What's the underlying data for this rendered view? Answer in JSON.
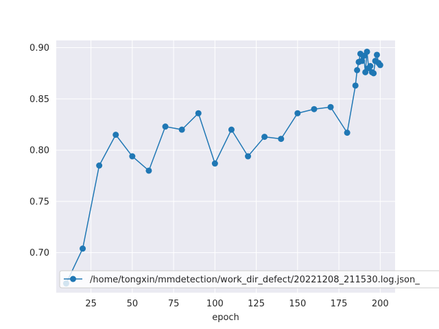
{
  "chart_data": {
    "type": "line",
    "title": "",
    "xlabel": "epoch",
    "ylabel": "",
    "xlim": [
      4,
      209
    ],
    "ylim": [
      0.661,
      0.907
    ],
    "xticks": [
      25,
      50,
      75,
      100,
      125,
      150,
      175,
      200
    ],
    "yticks": [
      0.7,
      0.75,
      0.8,
      0.85,
      0.9
    ],
    "xtick_labels": [
      "25",
      "50",
      "75",
      "100",
      "125",
      "150",
      "175",
      "200"
    ],
    "ytick_labels": [
      "0.70",
      "0.75",
      "0.80",
      "0.85",
      "0.90"
    ],
    "grid": true,
    "legend_position": "lower-right",
    "colors": {
      "line": "#1f77b4",
      "plot_bg": "#eaeaf2",
      "grid": "#ffffff",
      "legend_edge": "#cccccc"
    },
    "series": [
      {
        "name": "/home/tongxin/mmdetection/work_dir_defect/20221208_211530.log.json_",
        "x": [
          10,
          20,
          30,
          40,
          50,
          60,
          70,
          80,
          90,
          100,
          110,
          120,
          130,
          140,
          150,
          160,
          170,
          180,
          185,
          186,
          187,
          188,
          189,
          190,
          191,
          192,
          193,
          194,
          195,
          196,
          197,
          198,
          199,
          200
        ],
        "y": [
          0.67,
          0.704,
          0.785,
          0.815,
          0.794,
          0.78,
          0.823,
          0.82,
          0.836,
          0.787,
          0.82,
          0.794,
          0.813,
          0.811,
          0.836,
          0.84,
          0.842,
          0.817,
          0.863,
          0.878,
          0.886,
          0.894,
          0.887,
          0.892,
          0.876,
          0.896,
          0.88,
          0.882,
          0.876,
          0.875,
          0.887,
          0.893,
          0.885,
          0.883
        ]
      }
    ]
  }
}
